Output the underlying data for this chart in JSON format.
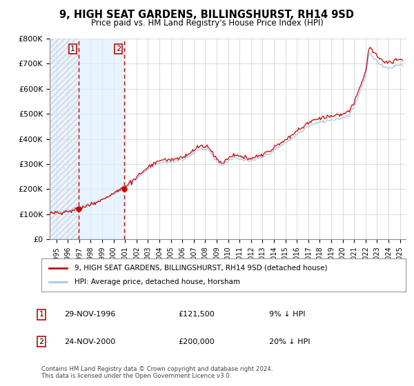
{
  "title": "9, HIGH SEAT GARDENS, BILLINGSHURST, RH14 9SD",
  "subtitle": "Price paid vs. HM Land Registry's House Price Index (HPI)",
  "legend_line1": "9, HIGH SEAT GARDENS, BILLINGSHURST, RH14 9SD (detached house)",
  "legend_line2": "HPI: Average price, detached house, Horsham",
  "footnote": "Contains HM Land Registry data © Crown copyright and database right 2024.\nThis data is licensed under the Open Government Licence v3.0.",
  "table": [
    {
      "num": "1",
      "date": "29-NOV-1996",
      "price": "£121,500",
      "hpi": "9% ↓ HPI"
    },
    {
      "num": "2",
      "date": "24-NOV-2000",
      "price": "£200,000",
      "hpi": "20% ↓ HPI"
    }
  ],
  "sale1_year": 1996.92,
  "sale1_price": 121500,
  "sale2_year": 2000.9,
  "sale2_price": 200000,
  "hpi_color": "#a8c8e8",
  "price_color": "#cc0000",
  "vline_color": "#cc0000",
  "shade_color": "#ddeeff",
  "ylim": [
    0,
    800000
  ],
  "xlim_start": 1994.42,
  "xlim_end": 2025.5,
  "yticks": [
    0,
    100000,
    200000,
    300000,
    400000,
    500000,
    600000,
    700000,
    800000
  ],
  "ylabels": [
    "£0",
    "£100K",
    "£200K",
    "£300K",
    "£400K",
    "£500K",
    "£600K",
    "£700K",
    "£800K"
  ]
}
